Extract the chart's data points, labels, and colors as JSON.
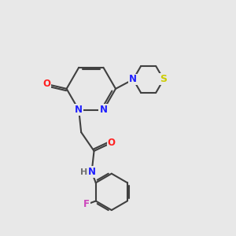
{
  "background_color": "#e8e8e8",
  "bond_color": "#404040",
  "atom_colors": {
    "N": "#2020ff",
    "O": "#ff2020",
    "S": "#cccc00",
    "F": "#cc44bb",
    "H": "#707070",
    "C": "#404040"
  },
  "bond_width": 1.5,
  "figsize": [
    3.0,
    3.0
  ],
  "dpi": 100,
  "xlim": [
    0,
    10
  ],
  "ylim": [
    0,
    10
  ]
}
